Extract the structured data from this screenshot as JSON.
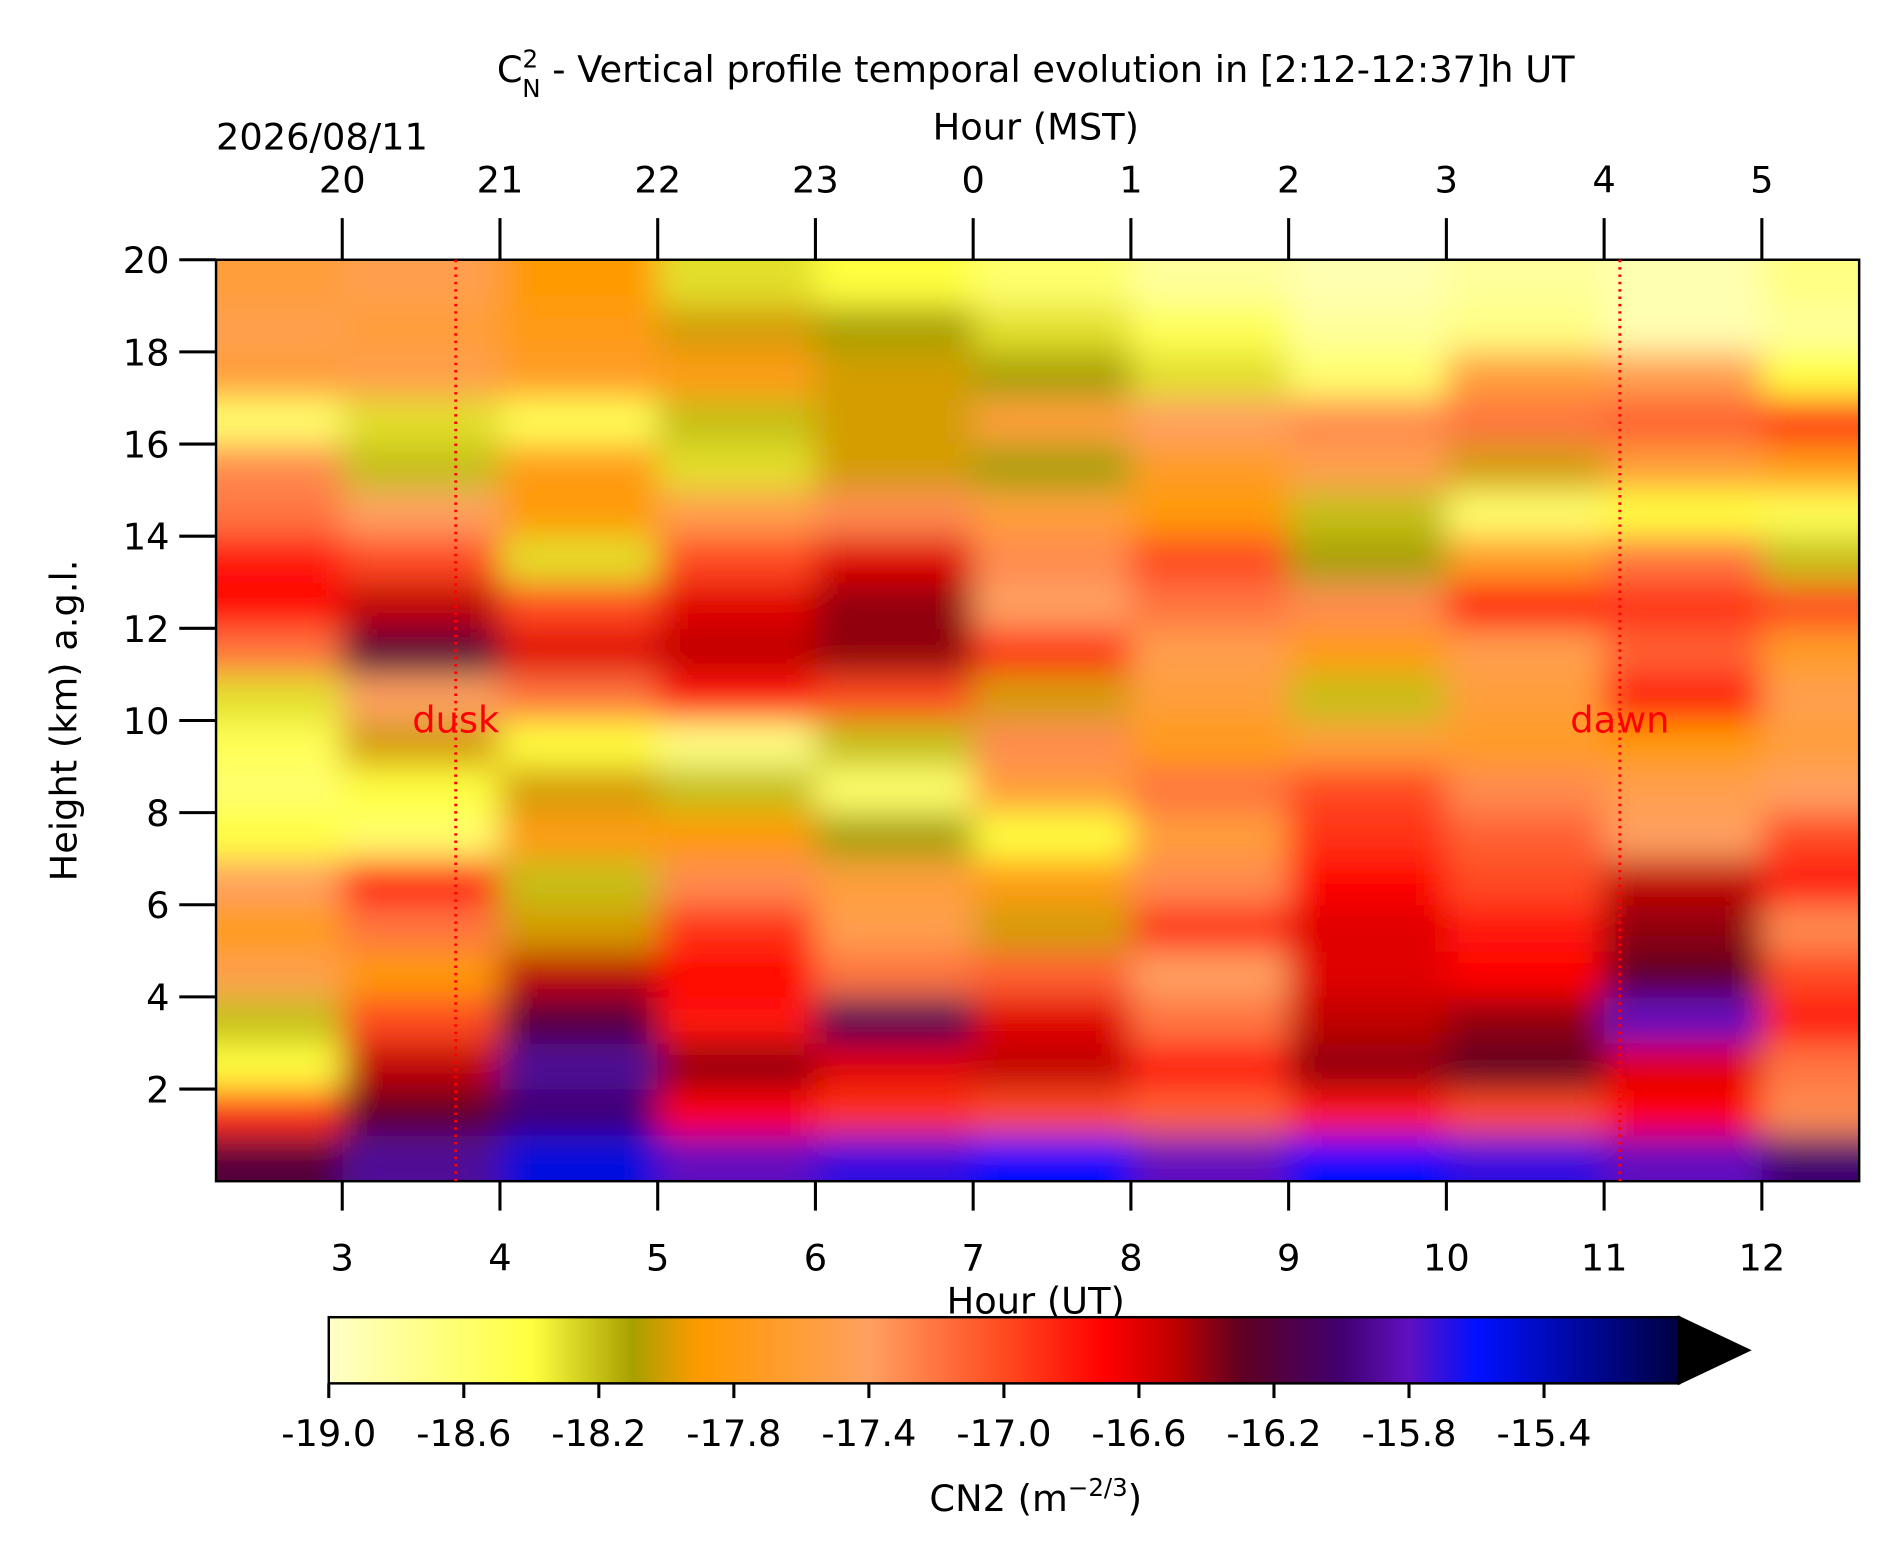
{
  "chart_data": {
    "type": "heatmap",
    "title_symbol": "C",
    "title_sup": "2",
    "title_sub": "N",
    "title": " - Vertical profile temporal evolution in [2:12-12:37]h UT",
    "date": "2026/08/11",
    "x_label": "Hour (UT)",
    "x2_label": "Hour (MST)",
    "y_label": "Height (km) a.g.l.",
    "xlim": [
      2.2,
      12.617
    ],
    "ylim": [
      0,
      20
    ],
    "xticks": [
      3,
      4,
      5,
      6,
      7,
      8,
      9,
      10,
      11,
      12
    ],
    "x2ticks": [
      {
        "value": 3,
        "label": "20"
      },
      {
        "value": 4,
        "label": "21"
      },
      {
        "value": 5,
        "label": "22"
      },
      {
        "value": 6,
        "label": "23"
      },
      {
        "value": 7,
        "label": "0"
      },
      {
        "value": 8,
        "label": "1"
      },
      {
        "value": 9,
        "label": "2"
      },
      {
        "value": 10,
        "label": "3"
      },
      {
        "value": 11,
        "label": "4"
      },
      {
        "value": 12,
        "label": "5"
      }
    ],
    "yticks": [
      2,
      4,
      6,
      8,
      10,
      12,
      14,
      16,
      18,
      20
    ],
    "x": [
      2.5,
      3.5,
      4.5,
      5.5,
      6.5,
      7.5,
      8.5,
      9.5,
      10.5,
      11.5,
      12.5
    ],
    "y": [
      0.5,
      1.5,
      2.5,
      3.5,
      4.5,
      5.5,
      6.5,
      7.5,
      8.5,
      9.5,
      10.5,
      11.5,
      12.5,
      13.5,
      14.5,
      15.5,
      16.5,
      17.5,
      18.5,
      19.5
    ],
    "z": [
      [
        -16.2,
        -15.9,
        -15.5,
        -15.8,
        -15.7,
        -15.6,
        -15.8,
        -15.6,
        -15.7,
        -15.8,
        -16.0
      ],
      [
        -16.9,
        -16.3,
        -16.0,
        -16.7,
        -16.9,
        -17.0,
        -17.1,
        -16.8,
        -17.0,
        -16.7,
        -17.3
      ],
      [
        -18.4,
        -16.5,
        -15.9,
        -16.4,
        -16.6,
        -16.5,
        -16.8,
        -16.4,
        -16.3,
        -16.6,
        -17.2
      ],
      [
        -18.2,
        -17.0,
        -16.2,
        -16.8,
        -16.1,
        -16.6,
        -17.2,
        -16.5,
        -16.4,
        -15.8,
        -16.8
      ],
      [
        -17.5,
        -17.9,
        -16.5,
        -16.7,
        -17.2,
        -17.1,
        -17.4,
        -16.6,
        -16.7,
        -16.3,
        -17.0
      ],
      [
        -17.8,
        -17.2,
        -18.0,
        -16.9,
        -17.5,
        -18.0,
        -16.9,
        -16.6,
        -16.8,
        -16.4,
        -17.3
      ],
      [
        -17.4,
        -16.8,
        -18.2,
        -17.3,
        -17.6,
        -17.8,
        -17.3,
        -16.7,
        -17.0,
        -16.5,
        -16.8
      ],
      [
        -18.4,
        -18.6,
        -17.8,
        -17.9,
        -18.1,
        -18.4,
        -17.6,
        -16.9,
        -17.1,
        -17.4,
        -17.0
      ],
      [
        -18.6,
        -18.4,
        -18.0,
        -18.2,
        -18.6,
        -17.6,
        -17.2,
        -17.0,
        -17.3,
        -17.5,
        -17.4
      ],
      [
        -18.5,
        -18.0,
        -18.4,
        -18.7,
        -18.2,
        -17.3,
        -17.8,
        -17.6,
        -17.7,
        -17.9,
        -17.6
      ],
      [
        -18.3,
        -17.4,
        -17.2,
        -16.8,
        -17.0,
        -18.0,
        -17.6,
        -18.2,
        -17.6,
        -16.8,
        -17.5
      ],
      [
        -17.2,
        -16.2,
        -16.6,
        -16.5,
        -16.4,
        -16.9,
        -17.5,
        -17.8,
        -17.5,
        -17.1,
        -17.7
      ],
      [
        -16.7,
        -16.5,
        -17.0,
        -16.6,
        -16.4,
        -17.4,
        -17.2,
        -17.3,
        -16.8,
        -16.9,
        -17.0
      ],
      [
        -16.8,
        -17.0,
        -18.3,
        -17.0,
        -16.6,
        -17.3,
        -17.0,
        -18.1,
        -17.7,
        -17.2,
        -18.2
      ],
      [
        -17.2,
        -17.4,
        -17.9,
        -17.5,
        -17.3,
        -17.6,
        -17.9,
        -18.2,
        -18.6,
        -18.4,
        -18.5
      ],
      [
        -17.3,
        -18.2,
        -17.8,
        -18.3,
        -18.0,
        -18.1,
        -17.7,
        -17.5,
        -18.0,
        -17.6,
        -17.8
      ],
      [
        -18.6,
        -18.3,
        -18.5,
        -18.2,
        -18.0,
        -17.6,
        -17.4,
        -17.3,
        -17.2,
        -17.1,
        -16.9
      ],
      [
        -17.6,
        -17.5,
        -17.7,
        -17.8,
        -18.0,
        -18.1,
        -18.3,
        -18.6,
        -17.6,
        -17.5,
        -18.4
      ],
      [
        -17.5,
        -17.6,
        -17.8,
        -18.0,
        -18.1,
        -18.3,
        -18.5,
        -18.8,
        -18.7,
        -18.9,
        -18.8
      ],
      [
        -17.6,
        -17.5,
        -17.9,
        -18.3,
        -18.4,
        -18.6,
        -18.8,
        -18.9,
        -18.8,
        -18.9,
        -18.7
      ]
    ],
    "colormap": [
      {
        "value": -19.0,
        "color": "#ffffc8"
      },
      {
        "value": -18.4,
        "color": "#ffff40"
      },
      {
        "value": -18.1,
        "color": "#a8a000"
      },
      {
        "value": -17.9,
        "color": "#ff9a00"
      },
      {
        "value": -17.4,
        "color": "#ffa060"
      },
      {
        "value": -17.0,
        "color": "#ff4a20"
      },
      {
        "value": -16.7,
        "color": "#ff0000"
      },
      {
        "value": -16.5,
        "color": "#c00000"
      },
      {
        "value": -16.3,
        "color": "#600020"
      },
      {
        "value": -16.0,
        "color": "#400070"
      },
      {
        "value": -15.8,
        "color": "#6010c0"
      },
      {
        "value": -15.6,
        "color": "#0010ff"
      },
      {
        "value": -15.0,
        "color": "#000040"
      }
    ],
    "extend_color": "#000000",
    "clim": [
      -19.0,
      -15.0
    ],
    "cticks": [
      {
        "value": -19,
        "label": "-19.0"
      },
      -18.6,
      -18.2,
      -17.8,
      -17.4,
      {
        "value": -17,
        "label": "-17.0"
      },
      -16.6,
      -16.2,
      -15.8,
      -15.4
    ],
    "colorbar_label": "CN2 (m",
    "colorbar_label_sup": "−2/3",
    "colorbar_label_end": ")",
    "annotations": [
      {
        "text": "dusk",
        "x": 3.72,
        "y": 10,
        "color": "#ff0000"
      },
      {
        "text": "dawn",
        "x": 11.1,
        "y": 10,
        "color": "#ff0000"
      }
    ]
  }
}
